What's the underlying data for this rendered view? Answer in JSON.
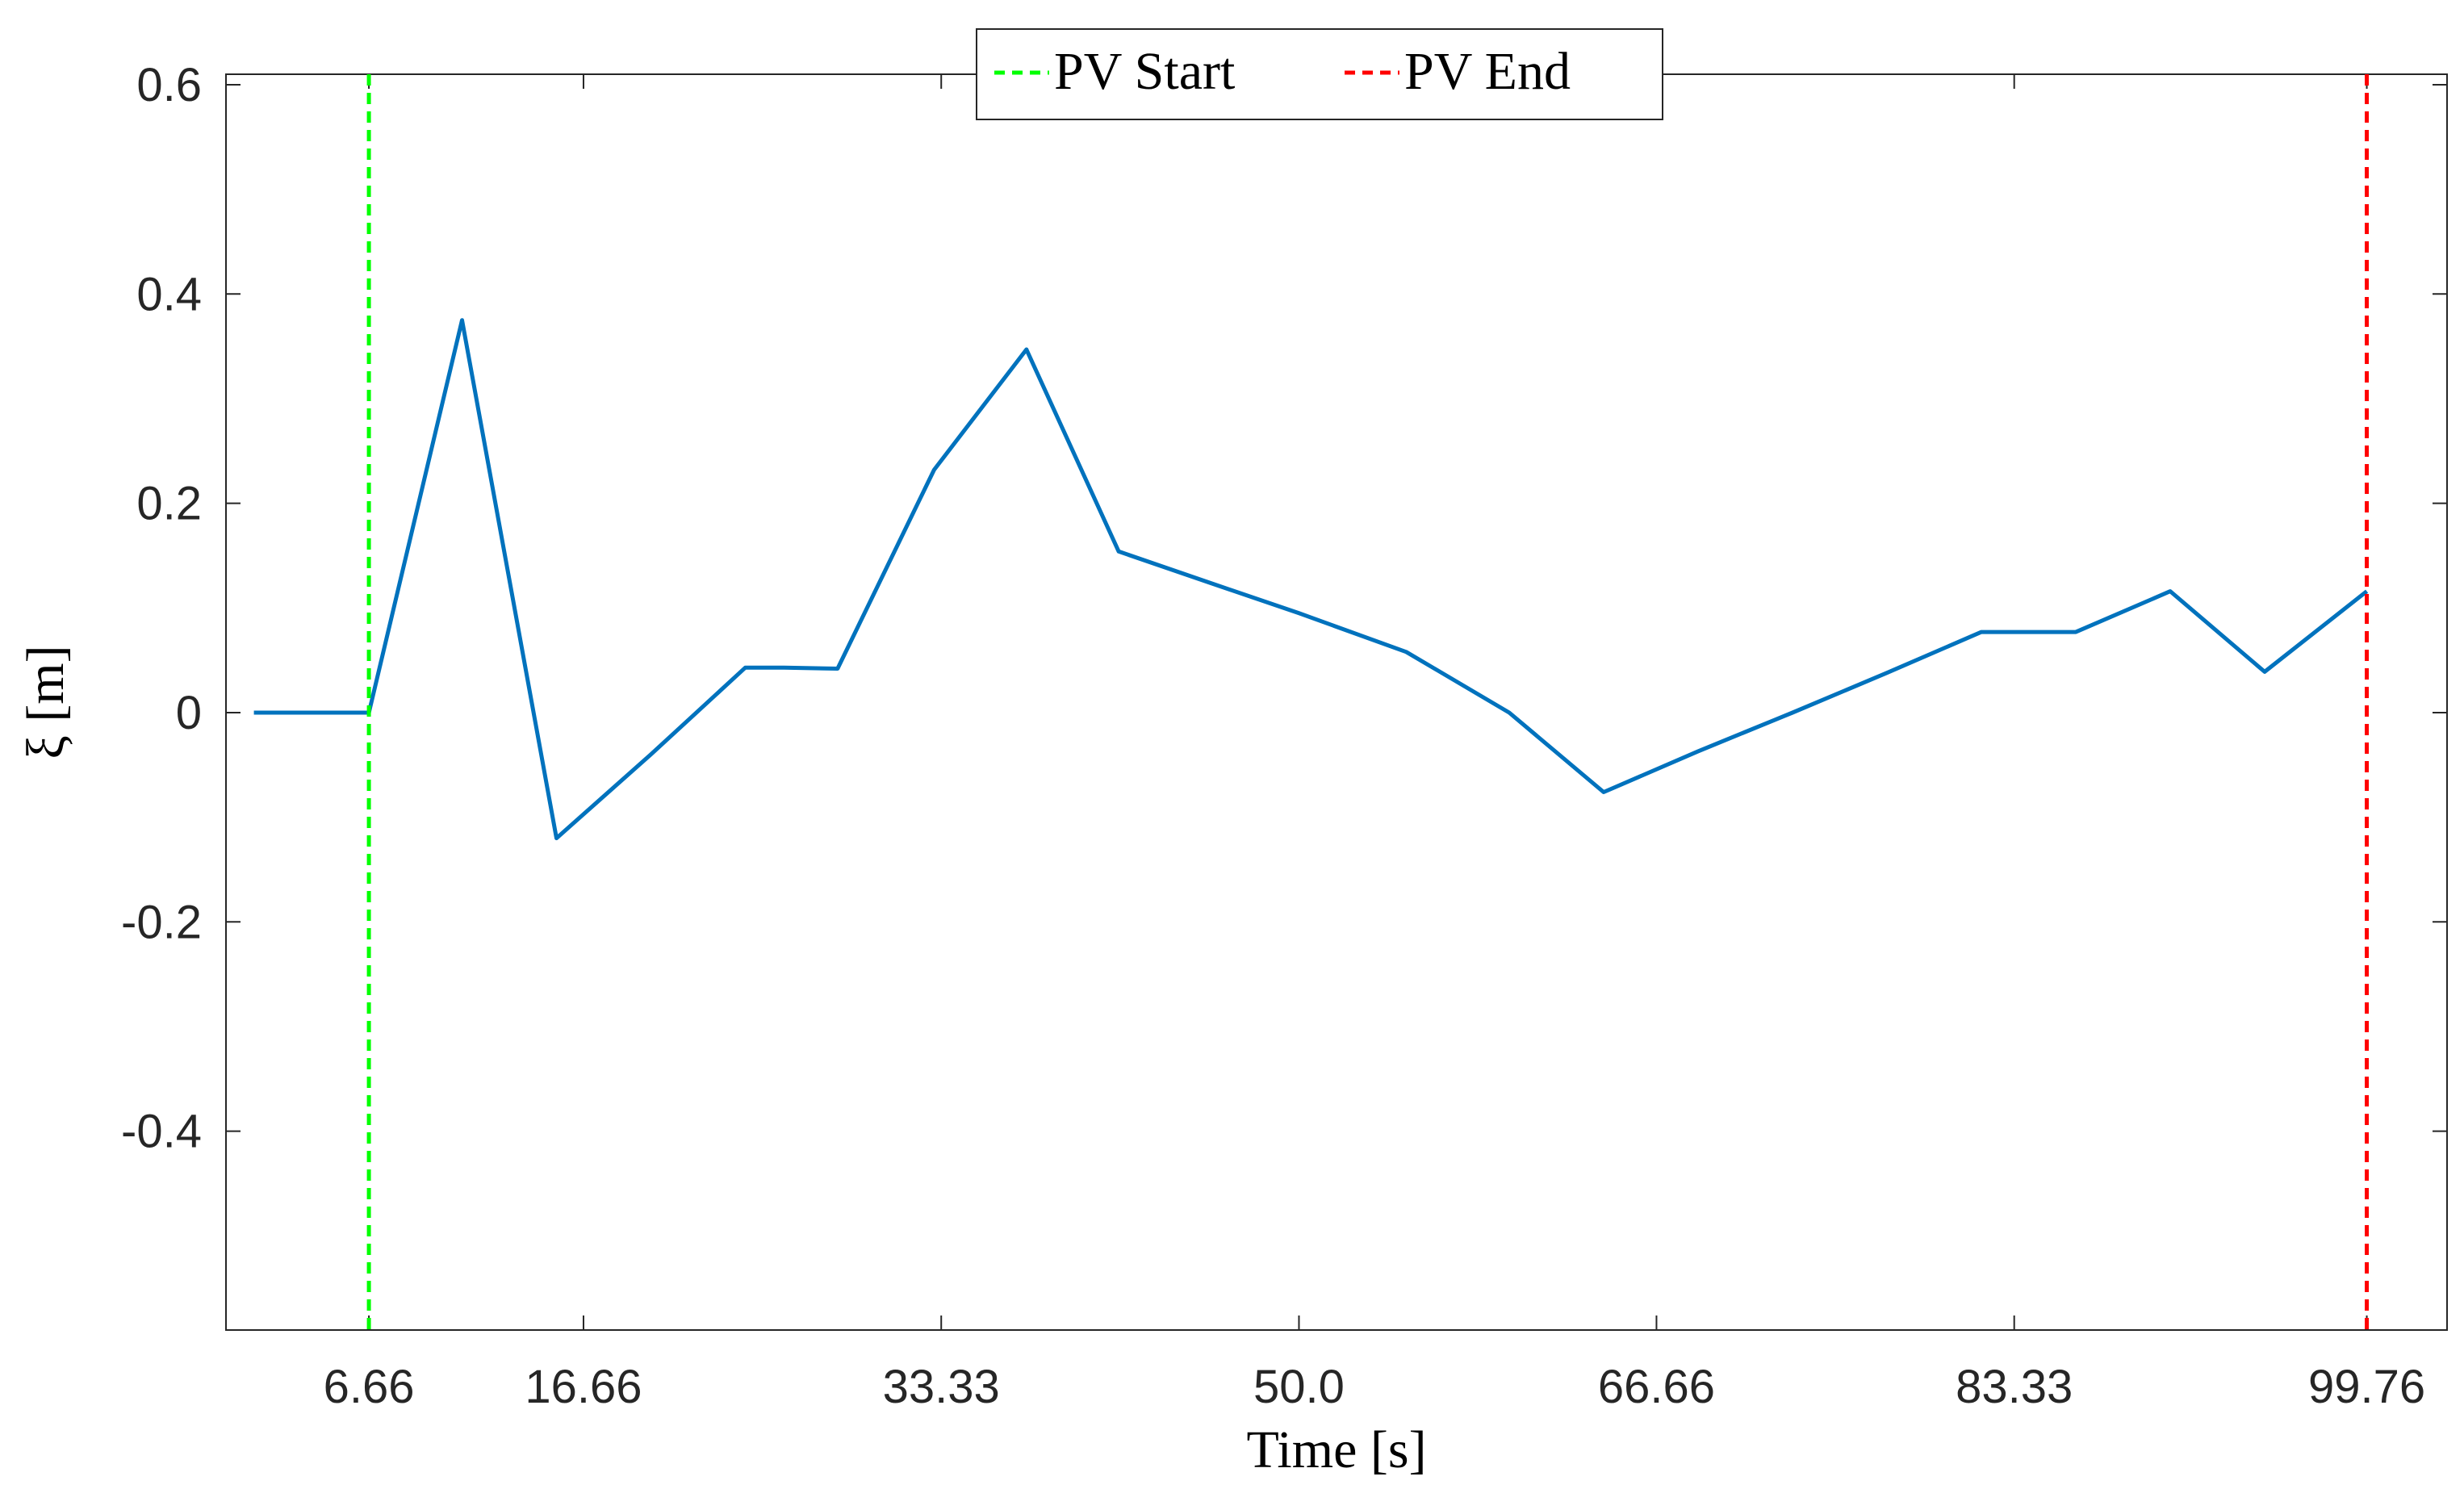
{
  "chart_data": {
    "type": "line",
    "xlabel": "Time [s]",
    "ylabel": "ξ [m]",
    "xlim": [
      0,
      103.5
    ],
    "ylim": [
      -0.59,
      0.61
    ],
    "xticks": [
      6.66,
      16.66,
      33.33,
      50.0,
      66.66,
      83.33,
      99.76
    ],
    "xtick_labels": [
      "6.66",
      "16.66",
      "33.33",
      "50.0",
      "66.66",
      "83.33",
      "99.76"
    ],
    "yticks": [
      0.6,
      0.4,
      0.2,
      0,
      -0.2,
      -0.4
    ],
    "ytick_labels": [
      "0.6",
      "0.4",
      "0.2",
      "0",
      "-0.2",
      "-0.4"
    ],
    "grid": false,
    "legend": {
      "position": "top-center",
      "entries": [
        {
          "label": "PV Start",
          "color": "#00ff00",
          "style": "dashed"
        },
        {
          "label": "PV End",
          "color": "#ff0000",
          "style": "dashed"
        }
      ]
    },
    "series": [
      {
        "color": "#0072bd",
        "x": [
          1.3,
          5.5,
          6.66,
          11.0,
          15.4,
          19.8,
          24.2,
          26.0,
          28.5,
          33.0,
          37.3,
          41.6,
          46.0,
          50.0,
          55.0,
          59.8,
          64.2,
          68.6,
          73.0,
          77.4,
          81.8,
          86.2,
          90.6,
          95.0,
          99.76
        ],
        "y": [
          0,
          0,
          0,
          0.375,
          -0.12,
          -0.04,
          0.043,
          0.043,
          0.042,
          0.232,
          0.347,
          0.154,
          0.123,
          0.095,
          0.058,
          0.0,
          -0.076,
          -0.037,
          0.0,
          0.038,
          0.077,
          0.077,
          0.116,
          0.039,
          0.116
        ]
      }
    ],
    "vlines": [
      {
        "x": 6.66,
        "color": "#00ff00",
        "style": "dashed",
        "label": "PV Start"
      },
      {
        "x": 99.76,
        "color": "#ff0000",
        "style": "dashed",
        "label": "PV End"
      }
    ]
  }
}
